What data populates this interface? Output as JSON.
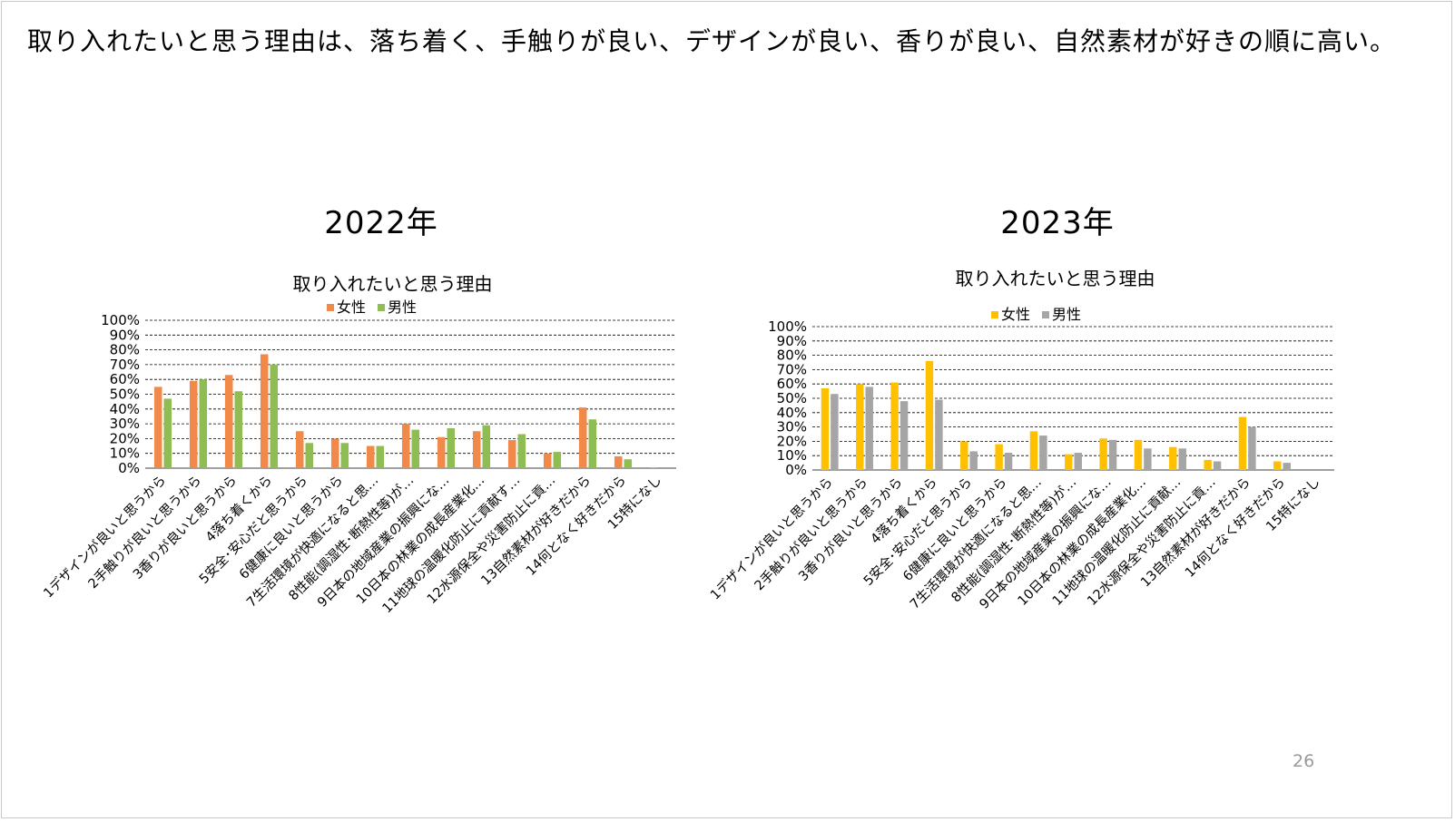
{
  "slide": {
    "headline": "取り入れたいと思う理由は、落ち着く、手触りが良い、デザインが良い、香りが良い、自然素材が好きの順に高い。",
    "page_number": "26"
  },
  "colors": {
    "female_2022": "#F0894A",
    "male_2022": "#8FBD53",
    "female_2023": "#FFC000",
    "male_2023": "#A5A5A5",
    "gridline": "#000000",
    "text": "#000000"
  },
  "chart_data": [
    {
      "type": "bar",
      "year_label": "2022年",
      "title": "取り入れたいと思う理由",
      "legend_position": "top",
      "grid": true,
      "ylim": [
        0,
        1
      ],
      "y_ticks": [
        "0%",
        "10%",
        "20%",
        "30%",
        "40%",
        "50%",
        "60%",
        "70%",
        "80%",
        "90%",
        "100%"
      ],
      "categories": [
        "1デザインが良いと思うから",
        "2手触りが良いと思うから",
        "3香りが良いと思うから",
        "4落ち着くから",
        "5安全･安心だと思うから",
        "6健康に良いと思うから",
        "7生活環境が快適になると思…",
        "8性能(調湿性･断熱性等)が…",
        "9日本の地域産業の振興にな…",
        "10日本の林業の成長産業化…",
        "11地球の温暖化防止に貢献す…",
        "12水源保全や災害防止に貢…",
        "13自然素材が好きだから",
        "14何となく好きだから",
        "15特になし"
      ],
      "series": [
        {
          "name": "女性",
          "values": [
            0.55,
            0.59,
            0.63,
            0.77,
            0.25,
            0.2,
            0.15,
            0.3,
            0.21,
            0.25,
            0.19,
            0.1,
            0.41,
            0.08,
            0.005
          ]
        },
        {
          "name": "男性",
          "values": [
            0.47,
            0.6,
            0.52,
            0.7,
            0.17,
            0.17,
            0.15,
            0.26,
            0.27,
            0.29,
            0.23,
            0.11,
            0.33,
            0.06,
            0.0
          ]
        }
      ]
    },
    {
      "type": "bar",
      "year_label": "2023年",
      "title": "取り入れたいと思う理由",
      "legend_position": "top",
      "grid": true,
      "ylim": [
        0,
        1
      ],
      "y_ticks": [
        "0%",
        "10%",
        "20%",
        "30%",
        "40%",
        "50%",
        "60%",
        "70%",
        "80%",
        "90%",
        "100%"
      ],
      "categories": [
        "1デザインが良いと思うから",
        "2手触りが良いと思うから",
        "3香りが良いと思うから",
        "4落ち着くから",
        "5安全･安心だと思うから",
        "6健康に良いと思うから",
        "7生活環境が快適になると思…",
        "8性能(調湿性･断熱性等)が…",
        "9日本の地域産業の振興にな…",
        "10日本の林業の成長産業化…",
        "11地球の温暖化防止に貢献…",
        "12水源保全や災害防止に貢…",
        "13自然素材が好きだから",
        "14何となく好きだから",
        "15特になし"
      ],
      "series": [
        {
          "name": "女性",
          "values": [
            0.57,
            0.6,
            0.61,
            0.76,
            0.2,
            0.18,
            0.27,
            0.11,
            0.22,
            0.21,
            0.16,
            0.07,
            0.37,
            0.06,
            0.0
          ]
        },
        {
          "name": "男性",
          "values": [
            0.53,
            0.58,
            0.48,
            0.49,
            0.13,
            0.12,
            0.24,
            0.12,
            0.21,
            0.15,
            0.15,
            0.06,
            0.3,
            0.05,
            0.0
          ]
        }
      ]
    }
  ]
}
